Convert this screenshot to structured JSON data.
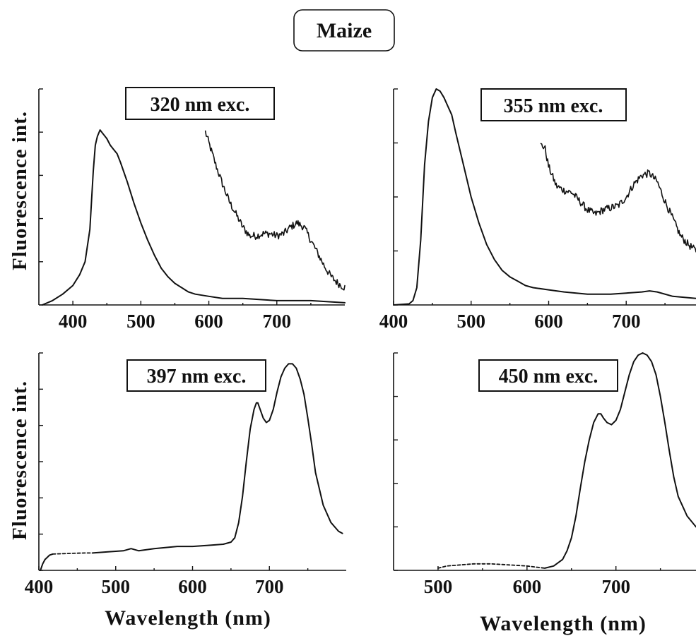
{
  "figure": {
    "title": "Maize",
    "y_label": "Fluorescence int.",
    "x_label": "Wavelength (nm)"
  },
  "chart_data": [
    {
      "type": "line",
      "panel": "top-left",
      "label": "320 nm exc.",
      "xlabel": "",
      "ylabel": "Fluorescence int.",
      "xlim": [
        350,
        800
      ],
      "ylim": [
        0,
        1
      ],
      "xticks": [
        400,
        500,
        600,
        700
      ],
      "series": [
        {
          "x": [
            355,
            370,
            385,
            400,
            410,
            418,
            425,
            430,
            433,
            436,
            440,
            445,
            450,
            455,
            460,
            465,
            470,
            480,
            490,
            500,
            510,
            520,
            530,
            540,
            550,
            560,
            570,
            580,
            600,
            620,
            650,
            700,
            750,
            800
          ],
          "y": [
            0.0,
            0.02,
            0.05,
            0.09,
            0.14,
            0.2,
            0.35,
            0.62,
            0.74,
            0.78,
            0.81,
            0.79,
            0.77,
            0.74,
            0.72,
            0.7,
            0.66,
            0.57,
            0.47,
            0.38,
            0.3,
            0.23,
            0.17,
            0.13,
            0.1,
            0.08,
            0.06,
            0.05,
            0.04,
            0.03,
            0.03,
            0.02,
            0.02,
            0.01
          ]
        },
        {
          "noisy": true,
          "x": [
            595,
            600,
            610,
            620,
            630,
            640,
            650,
            660,
            670,
            680,
            690,
            700,
            710,
            720,
            730,
            740,
            750,
            760,
            770,
            780,
            790,
            800
          ],
          "y": [
            0.8,
            0.75,
            0.65,
            0.56,
            0.48,
            0.42,
            0.36,
            0.32,
            0.32,
            0.33,
            0.33,
            0.32,
            0.33,
            0.36,
            0.38,
            0.36,
            0.3,
            0.24,
            0.18,
            0.13,
            0.1,
            0.08
          ]
        }
      ]
    },
    {
      "type": "line",
      "panel": "top-right",
      "label": "355 nm exc.",
      "xlabel": "",
      "ylabel": "",
      "xlim": [
        400,
        790
      ],
      "ylim": [
        0,
        1
      ],
      "xticks": [
        400,
        500,
        600,
        700
      ],
      "series": [
        {
          "x": [
            400,
            420,
            425,
            430,
            435,
            440,
            445,
            450,
            455,
            460,
            465,
            470,
            475,
            480,
            490,
            500,
            510,
            520,
            530,
            540,
            550,
            560,
            570,
            580,
            600,
            620,
            650,
            680,
            700,
            720,
            730,
            740,
            760,
            790
          ],
          "y": [
            0.0,
            0.005,
            0.02,
            0.08,
            0.3,
            0.65,
            0.85,
            0.96,
            1.0,
            0.99,
            0.96,
            0.92,
            0.88,
            0.8,
            0.65,
            0.5,
            0.38,
            0.28,
            0.21,
            0.16,
            0.13,
            0.11,
            0.09,
            0.08,
            0.07,
            0.06,
            0.05,
            0.05,
            0.055,
            0.06,
            0.065,
            0.06,
            0.04,
            0.03
          ]
        },
        {
          "noisy": true,
          "x": [
            590,
            595,
            600,
            610,
            620,
            630,
            640,
            650,
            660,
            670,
            680,
            690,
            700,
            710,
            720,
            730,
            740,
            750,
            760,
            770,
            780,
            790
          ],
          "y": [
            0.74,
            0.73,
            0.64,
            0.55,
            0.53,
            0.52,
            0.48,
            0.44,
            0.42,
            0.44,
            0.45,
            0.46,
            0.5,
            0.56,
            0.6,
            0.61,
            0.57,
            0.48,
            0.4,
            0.32,
            0.28,
            0.25
          ]
        }
      ]
    },
    {
      "type": "line",
      "panel": "bottom-left",
      "label": "397 nm exc.",
      "xlabel": "Wavelength (nm)",
      "ylabel": "Fluorescence int.",
      "xlim": [
        400,
        800
      ],
      "ylim": [
        0,
        1
      ],
      "xticks": [
        400,
        500,
        600,
        700
      ],
      "series": [
        {
          "x": [
            402,
            405,
            408,
            411,
            414,
            418
          ],
          "y": [
            0.0,
            0.03,
            0.05,
            0.06,
            0.07,
            0.075
          ]
        },
        {
          "dashed": true,
          "x": [
            418,
            440,
            460,
            470
          ],
          "y": [
            0.075,
            0.078,
            0.08,
            0.08
          ]
        },
        {
          "x": [
            470,
            490,
            510,
            520,
            530,
            550,
            580,
            600,
            620,
            640,
            650,
            655,
            660,
            665,
            670,
            675,
            680,
            683,
            685,
            688,
            692,
            696,
            700,
            705,
            710,
            715,
            720,
            725,
            730,
            735,
            740,
            745,
            750,
            755,
            760,
            770,
            780,
            790,
            795
          ],
          "y": [
            0.08,
            0.085,
            0.09,
            0.1,
            0.09,
            0.1,
            0.11,
            0.11,
            0.115,
            0.12,
            0.13,
            0.15,
            0.22,
            0.34,
            0.5,
            0.65,
            0.74,
            0.77,
            0.77,
            0.74,
            0.7,
            0.68,
            0.69,
            0.74,
            0.82,
            0.89,
            0.93,
            0.95,
            0.95,
            0.93,
            0.88,
            0.81,
            0.7,
            0.58,
            0.45,
            0.3,
            0.22,
            0.18,
            0.17
          ]
        }
      ]
    },
    {
      "type": "line",
      "panel": "bottom-right",
      "label": "450 nm exc.",
      "xlabel": "Wavelength (nm)",
      "ylabel": "",
      "xlim": [
        450,
        790
      ],
      "ylim": [
        0,
        1
      ],
      "xticks": [
        500,
        600,
        700
      ],
      "series": [
        {
          "dashed": true,
          "x": [
            500,
            510,
            525,
            540,
            560,
            580,
            600,
            610,
            620
          ],
          "y": [
            0.01,
            0.02,
            0.025,
            0.03,
            0.03,
            0.025,
            0.02,
            0.015,
            0.01
          ]
        },
        {
          "x": [
            620,
            630,
            640,
            645,
            650,
            655,
            660,
            665,
            670,
            675,
            680,
            683,
            686,
            690,
            695,
            700,
            705,
            710,
            715,
            720,
            725,
            730,
            735,
            740,
            745,
            750,
            755,
            760,
            765,
            770,
            780,
            790
          ],
          "y": [
            0.01,
            0.02,
            0.05,
            0.09,
            0.15,
            0.25,
            0.38,
            0.5,
            0.6,
            0.68,
            0.72,
            0.72,
            0.7,
            0.68,
            0.67,
            0.69,
            0.74,
            0.82,
            0.9,
            0.96,
            0.99,
            1.0,
            0.99,
            0.96,
            0.9,
            0.8,
            0.68,
            0.55,
            0.43,
            0.34,
            0.25,
            0.2
          ]
        }
      ]
    }
  ]
}
